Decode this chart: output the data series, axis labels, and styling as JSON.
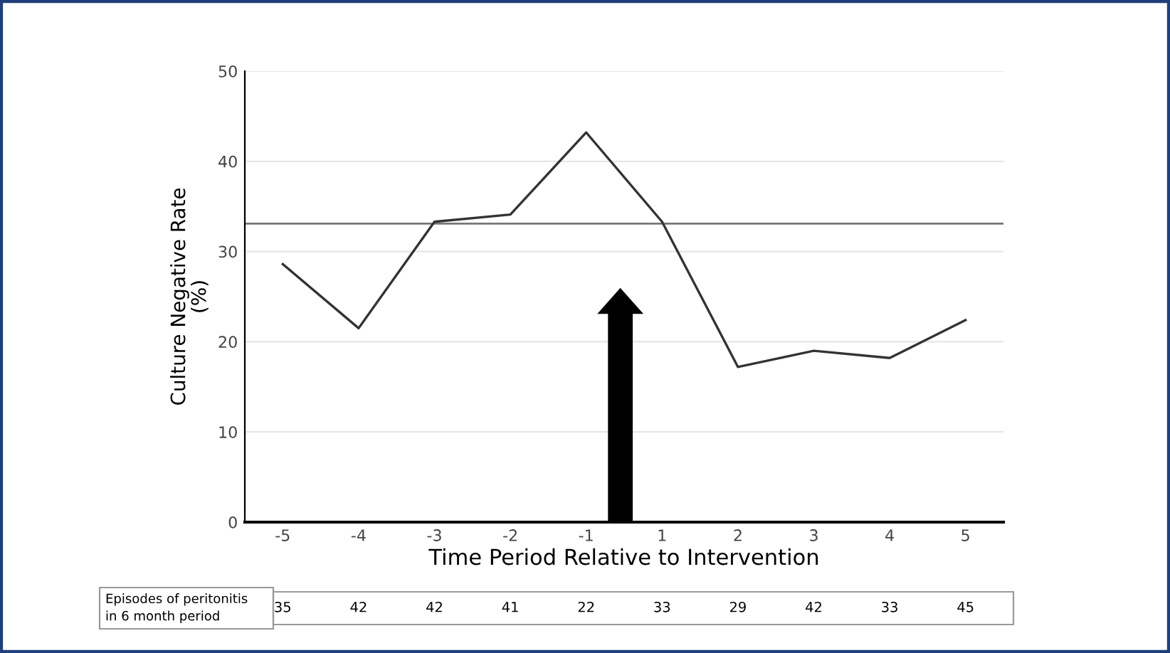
{
  "chart_data": {
    "type": "line",
    "xlabel": "Time Period Relative to Intervention",
    "ylabel": "Culture Negative Rate\n(%)",
    "categories": [
      "-5",
      "-4",
      "-3",
      "-2",
      "-1",
      "1",
      "2",
      "3",
      "4",
      "5"
    ],
    "series": [
      {
        "color": "#333333",
        "values": [
          28.6,
          21.5,
          33.3,
          34.1,
          43.2,
          33.3,
          17.2,
          19.0,
          18.2,
          22.4
        ]
      }
    ],
    "ylim": [
      0,
      50
    ],
    "yticks": [
      0,
      10,
      20,
      30,
      40,
      50
    ],
    "grid": "y",
    "marker": "none",
    "line_style": "solid",
    "ref_lines": [
      {
        "axis": "y",
        "value": 33.1,
        "color": "#777777"
      }
    ],
    "annotations": [
      "Episodes of peritonitis\nin 6 month period",
      "35",
      "42",
      "42",
      "41",
      "22",
      "33",
      "29",
      "42",
      "33",
      "45"
    ]
  }
}
